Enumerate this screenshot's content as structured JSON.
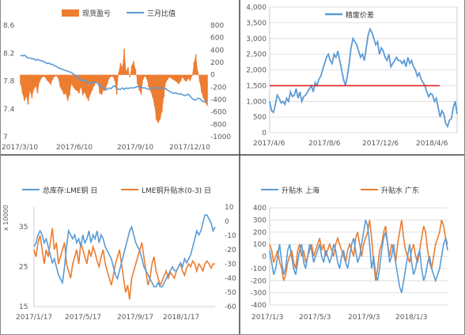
{
  "chart_data": [
    {
      "type": "bar+line",
      "legend": [
        "现货盈亏",
        "三月比值"
      ],
      "colors": {
        "bar": "#ED7D31",
        "line": "#5B9BD5"
      },
      "x_ticks": [
        "2017/3/10",
        "2017/6/10",
        "2017/9/10",
        "2017/12/10"
      ],
      "y_left": {
        "ticks": [
          "7",
          "7.4",
          "7.8",
          "8.2",
          "8.6"
        ],
        "range": [
          7,
          8.6
        ]
      },
      "y_right": {
        "ticks": [
          "-1000",
          "-800",
          "-600",
          "-400",
          "-200",
          "0",
          "200",
          "400",
          "600",
          "800"
        ],
        "range": [
          -1000,
          800
        ]
      },
      "series": [
        {
          "name": "现货盈亏",
          "axis": "right",
          "kind": "bar",
          "values": [
            -150,
            -300,
            -420,
            -350,
            -480,
            -260,
            -380,
            -240,
            -180,
            -300,
            -120,
            -60,
            -30,
            -40,
            -90,
            -120,
            -160,
            -80,
            -30,
            -20,
            -60,
            -200,
            -250,
            -320,
            -300,
            -420,
            -330,
            -150,
            -200,
            -240,
            -260,
            -300,
            -200,
            -330,
            -280,
            -360,
            -420,
            -320,
            -250,
            -180,
            -120,
            -120,
            -300,
            -320,
            -250,
            -260,
            -150,
            -60,
            -30,
            -30,
            -100,
            -320,
            40,
            190,
            120,
            420,
            60,
            120,
            -40,
            150,
            220,
            90,
            -150,
            -250,
            -320,
            -80,
            -20,
            -70,
            -200,
            -270,
            -360,
            -500,
            -720,
            -780,
            -720,
            -600,
            -360,
            -130,
            -80,
            -40,
            -60,
            -80,
            -100,
            -120,
            -150,
            -100,
            -40,
            -90,
            -110,
            -60,
            -100,
            -20,
            200,
            330,
            60,
            -120,
            -280,
            -380,
            -450,
            -500
          ]
        },
        {
          "name": "三月比值",
          "axis": "left",
          "kind": "line",
          "values": [
            8.17,
            8.16,
            8.17,
            8.15,
            8.13,
            8.13,
            8.12,
            8.12,
            8.1,
            8.11,
            8.1,
            8.09,
            8.08,
            8.07,
            8.05,
            8.06,
            8.04,
            8.04,
            8.02,
            8.01,
            7.99,
            7.98,
            7.97,
            7.96,
            7.95,
            7.94,
            7.93,
            7.92,
            7.9,
            7.88,
            7.86,
            7.84,
            7.81,
            7.81,
            7.8,
            7.79,
            7.77,
            7.78,
            7.77,
            7.78,
            7.78,
            7.76,
            7.74,
            7.72,
            7.7,
            7.68,
            7.68,
            7.7,
            7.69,
            7.72,
            7.73,
            7.7,
            7.68,
            7.68,
            7.7,
            7.68,
            7.7,
            7.69,
            7.7,
            7.7,
            7.7,
            7.71,
            7.72,
            7.72,
            7.71,
            7.7,
            7.7,
            7.69,
            7.68,
            7.7,
            7.7,
            7.7,
            7.7,
            7.7,
            7.7,
            7.7,
            7.69,
            7.69,
            7.67,
            7.65,
            7.64,
            7.62,
            7.63,
            7.62,
            7.61,
            7.62,
            7.6,
            7.59,
            7.6,
            7.61,
            7.58,
            7.55,
            7.53,
            7.53,
            7.55,
            7.55,
            7.52,
            7.5,
            7.51,
            7.52
          ]
        }
      ]
    },
    {
      "type": "line",
      "legend": [
        "精废价差"
      ],
      "colors": {
        "line": "#5B9BD5",
        "ref": "#E02020"
      },
      "x_ticks": [
        "2017/4/6",
        "2017/8/6",
        "2017/12/6",
        "2018/4/6"
      ],
      "y_ticks": [
        "0",
        "500",
        "1,000",
        "1,500",
        "2,000",
        "2,500",
        "3,000",
        "3,500",
        "4,000"
      ],
      "ylim": [
        0,
        4000
      ],
      "reference_line": 1500,
      "series": [
        {
          "name": "精废价差",
          "values": [
            1000,
            700,
            650,
            900,
            1200,
            1100,
            950,
            1000,
            900,
            1100,
            1000,
            1300,
            1150,
            1200,
            1400,
            1100,
            1300,
            1000,
            1150,
            1200,
            1300,
            1400,
            1500,
            1300,
            1600,
            1500,
            1700,
            1800,
            2000,
            2200,
            2400,
            2500,
            2300,
            2200,
            2500,
            2400,
            2600,
            2300,
            2000,
            1700,
            1500,
            1800,
            2200,
            2700,
            3000,
            2900,
            2800,
            2600,
            2400,
            2500,
            2300,
            2700,
            3100,
            3300,
            3200,
            3000,
            2800,
            2900,
            2500,
            2700,
            2600,
            2400,
            2300,
            2500,
            2100,
            2200,
            2300,
            2400,
            2300,
            2300,
            2200,
            2300,
            2100,
            2400,
            2200,
            2300,
            2100,
            2000,
            1800,
            1900,
            1700,
            1600,
            1500,
            1300,
            1150,
            1250,
            1200,
            1000,
            1100,
            800,
            500,
            700,
            600,
            300,
            200,
            400,
            450,
            800,
            1000,
            600
          ]
        }
      ]
    },
    {
      "type": "line",
      "legend": [
        "总库存:LME铜 日",
        "LME铜升贴水(0-3) 日"
      ],
      "colors": {
        "s1": "#5B9BD5",
        "s2": "#ED7D31"
      },
      "unit_label": "x 10000",
      "x_ticks": [
        "2017/1/17",
        "2017/5/17",
        "2017/9/17",
        "2018/1/17"
      ],
      "y_left": {
        "ticks": [
          "15",
          "25",
          "35"
        ],
        "range": [
          15,
          40
        ]
      },
      "y_right": {
        "ticks": [
          "-60",
          "-50",
          "-40",
          "-30",
          "-20",
          "-10",
          "0",
          "10"
        ],
        "range": [
          -60,
          10
        ]
      },
      "series": [
        {
          "name": "总库存:LME铜 日",
          "axis": "left",
          "values": [
            30,
            31,
            33,
            34,
            33,
            31,
            32,
            30,
            28,
            26,
            27,
            25,
            23,
            22,
            21,
            25,
            30,
            34,
            33,
            32,
            33,
            31,
            32,
            30,
            33,
            31,
            32,
            34,
            31,
            33,
            32,
            34,
            31,
            33,
            32,
            30,
            29,
            28,
            27,
            25,
            23,
            22,
            24,
            26,
            28,
            30,
            32,
            34,
            35,
            33,
            31,
            30,
            29,
            27,
            25,
            24,
            23,
            22,
            21,
            20,
            20,
            21,
            20,
            20,
            21,
            22,
            23,
            24,
            25,
            24,
            24,
            25,
            26,
            25,
            27,
            26,
            27,
            28,
            30,
            32,
            34,
            33,
            34,
            36,
            38,
            38,
            37,
            36,
            34,
            35
          ]
        },
        {
          "name": "LME铜升贴水(0-3) 日",
          "axis": "right",
          "values": [
            -20,
            -25,
            -15,
            -10,
            -20,
            -30,
            -20,
            -25,
            -15,
            -5,
            -20,
            -15,
            -30,
            -25,
            -20,
            -15,
            -30,
            -35,
            -40,
            -30,
            -25,
            -20,
            -30,
            -15,
            -20,
            -25,
            -30,
            -20,
            -25,
            -18,
            -22,
            -28,
            -32,
            -25,
            -20,
            -30,
            -35,
            -40,
            -45,
            -38,
            -30,
            -25,
            -20,
            -30,
            -40,
            -50,
            -45,
            -55,
            -40,
            -35,
            -30,
            -25,
            -20,
            -15,
            -25,
            -35,
            -45,
            -40,
            -30,
            -25,
            -35,
            -40,
            -45,
            -42,
            -38,
            -35,
            -40,
            -36,
            -38,
            -40,
            -35,
            -32,
            -30,
            -35,
            -38,
            -33,
            -30,
            -32,
            -28,
            -30,
            -35,
            -30,
            -32,
            -35,
            -30,
            -28,
            -30,
            -33,
            -30,
            -30
          ]
        }
      ]
    },
    {
      "type": "line",
      "legend": [
        "升贴水 上海",
        "升贴水 广东"
      ],
      "colors": {
        "s1": "#5B9BD5",
        "s2": "#ED7D31"
      },
      "x_ticks": [
        "2017/1/3",
        "2017/5/3",
        "2017/9/3",
        "2018/1/3"
      ],
      "y_ticks": [
        "-400",
        "-300",
        "-200",
        "-100",
        "0",
        "100",
        "200",
        "300",
        "400"
      ],
      "ylim": [
        -400,
        400
      ],
      "series": [
        {
          "name": "升贴水 上海",
          "values": [
            50,
            -50,
            -150,
            -100,
            0,
            100,
            -50,
            -150,
            -100,
            50,
            100,
            0,
            -100,
            -150,
            -50,
            50,
            100,
            -50,
            -100,
            0,
            100,
            50,
            -50,
            0,
            50,
            100,
            0,
            -50,
            50,
            0,
            -50,
            0,
            100,
            50,
            -50,
            -100,
            0,
            50,
            -50,
            -100,
            0,
            100,
            150,
            50,
            -50,
            0,
            100,
            200,
            300,
            250,
            100,
            -100,
            0,
            -150,
            -200,
            -100,
            50,
            150,
            200,
            100,
            -50,
            0,
            100,
            -50,
            -150,
            -250,
            -300,
            -200,
            -100,
            0,
            100,
            -50,
            -150,
            -100,
            0,
            50,
            -100,
            -200,
            -150,
            -50,
            0,
            -100,
            -150,
            -200,
            -150,
            -100,
            0,
            100,
            150,
            50
          ]
        },
        {
          "name": "升贴水 广东",
          "values": [
            100,
            50,
            -50,
            0,
            50,
            -50,
            -100,
            -200,
            -150,
            -50,
            0,
            50,
            -50,
            -100,
            50,
            100,
            0,
            50,
            -50,
            0,
            50,
            100,
            0,
            50,
            100,
            150,
            50,
            100,
            0,
            50,
            100,
            50,
            0,
            100,
            150,
            100,
            50,
            0,
            -50,
            50,
            100,
            50,
            0,
            150,
            200,
            100,
            0,
            100,
            150,
            200,
            300,
            150,
            -50,
            -200,
            -100,
            50,
            100,
            200,
            250,
            100,
            0,
            100,
            50,
            -50,
            100,
            200,
            300,
            150,
            50,
            0,
            -50,
            50,
            100,
            0,
            -50,
            50,
            150,
            250,
            200,
            50,
            -50,
            -100,
            0,
            100,
            150,
            200,
            300,
            250,
            150,
            100
          ]
        }
      ]
    }
  ]
}
